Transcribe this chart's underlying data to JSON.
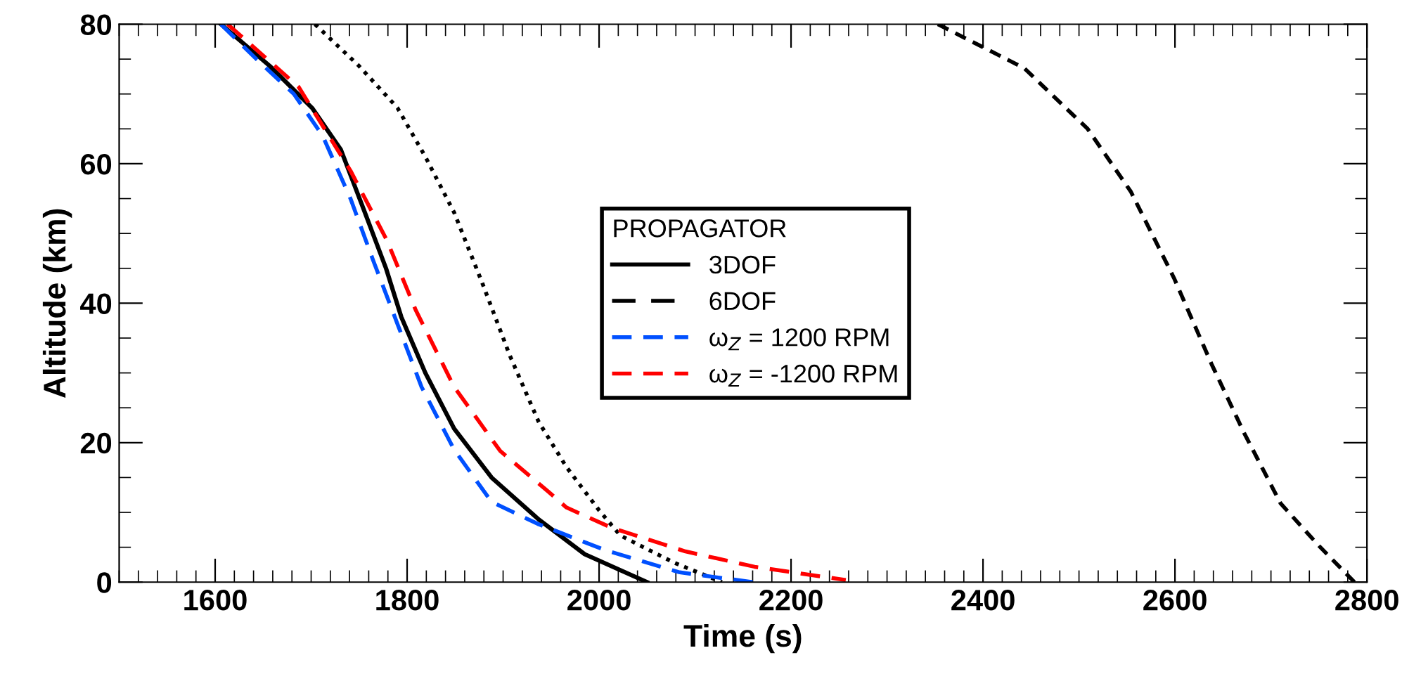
{
  "chart_data": {
    "type": "line",
    "xlabel": "Time (s)",
    "ylabel": "Altitude (km)",
    "xlim": [
      1500,
      2800
    ],
    "xticks": [
      1600,
      1800,
      2000,
      2200,
      2400,
      2600,
      2800
    ],
    "ylim": [
      0,
      80
    ],
    "yticks": [
      0,
      20,
      40,
      60,
      80
    ],
    "grid": false,
    "legend": "center",
    "legend_title": "PROPAGATOR",
    "marker": "none",
    "series": [
      {
        "color": "#000000",
        "line_style": "dashed",
        "x": [
          2353,
          2443,
          2509,
          2554,
          2599,
          2638,
          2672,
          2710,
          2750,
          2787
        ],
        "values": [
          80,
          73.7,
          65,
          56,
          43.6,
          31.3,
          21.4,
          11.3,
          5.2,
          0
        ]
      },
      {
        "color": "#000000",
        "line_style": "dotted",
        "x": [
          1704,
          1750,
          1790,
          1819,
          1849,
          1878,
          1907,
          1937,
          1966,
          2000,
          2022,
          2078,
          2128
        ],
        "values": [
          80,
          74,
          68,
          61,
          53,
          43,
          32.5,
          23,
          16.5,
          10.3,
          6.7,
          2.8,
          0
        ]
      },
      {
        "name": "3DOF",
        "color": "#000000",
        "line_style": "solid",
        "x": [
          1606,
          1657,
          1701,
          1731,
          1756,
          1778,
          1794,
          1819,
          1849,
          1888,
          1937,
          1985,
          2050
        ],
        "values": [
          80,
          74,
          68,
          62,
          53,
          45,
          38,
          30,
          22,
          15,
          9,
          4,
          0
        ]
      },
      {
        "name": "6DOF",
        "color": "#000000",
        "line_style": "dashed"
      },
      {
        "name": "ω$_{Z}$ = 1200 RPM",
        "color": "#0050ff",
        "line_style": "dashed",
        "x": [
          1606,
          1643,
          1682,
          1712,
          1741,
          1765,
          1790,
          1815,
          1849,
          1888,
          1937,
          2006,
          2084,
          2160
        ],
        "values": [
          80,
          75,
          70,
          64,
          55,
          46,
          37,
          28,
          19,
          11.5,
          8.3,
          4.6,
          1.4,
          0
        ]
      },
      {
        "name": "ω$_{Z}$ = -1200 RPM",
        "color": "#ff0000",
        "line_style": "dashed",
        "x": [
          1613,
          1687,
          1741,
          1779,
          1809,
          1849,
          1897,
          1947,
          1966,
          2013,
          2090,
          2162,
          2257
        ],
        "values": [
          80,
          71,
          59,
          49,
          39,
          28,
          18.8,
          13,
          10.7,
          7.8,
          4.4,
          2.2,
          0.3
        ]
      }
    ]
  }
}
